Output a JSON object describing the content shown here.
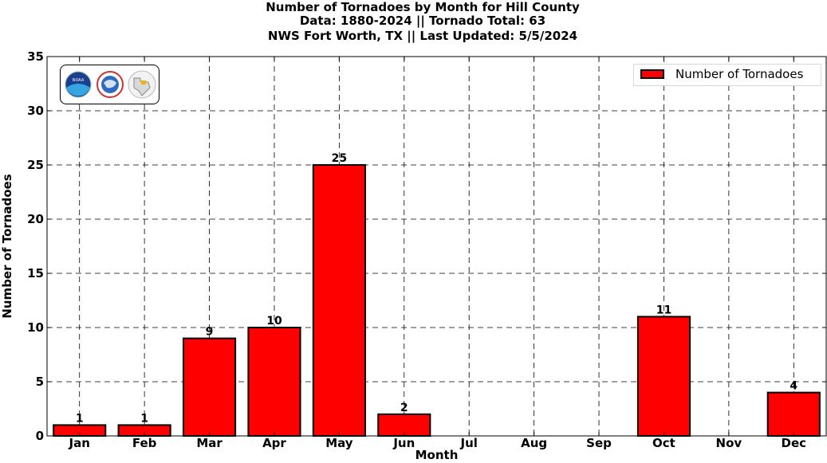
{
  "title": {
    "line1": "Number of Tornadoes by Month for Hill County",
    "line2": "Data: 1880-2024 || Tornado Total: 63",
    "line3": "NWS Fort Worth, TX || Last Updated: 5/5/2024"
  },
  "legend": {
    "label": "Number of Tornadoes"
  },
  "logos": [
    "noaa-logo",
    "nws-logo",
    "texas-map-logo"
  ],
  "chart_data": {
    "type": "bar",
    "categories": [
      "Jan",
      "Feb",
      "Mar",
      "Apr",
      "May",
      "Jun",
      "Jul",
      "Aug",
      "Sep",
      "Oct",
      "Nov",
      "Dec"
    ],
    "series": [
      {
        "name": "Number of Tornadoes",
        "values": [
          1,
          1,
          9,
          10,
          25,
          2,
          0,
          0,
          0,
          11,
          0,
          4
        ],
        "color": "#ff0000"
      }
    ],
    "data_labels": [
      "1",
      "1",
      "9",
      "10",
      "25",
      "2",
      "",
      "",
      "",
      "11",
      "",
      "4"
    ],
    "xlabel": "Month",
    "ylabel": "Number of Tornadoes",
    "ylim": [
      0,
      35
    ],
    "yticks": [
      0,
      5,
      10,
      15,
      20,
      25,
      30,
      35
    ],
    "grid": true,
    "legend_position": "top-right"
  }
}
